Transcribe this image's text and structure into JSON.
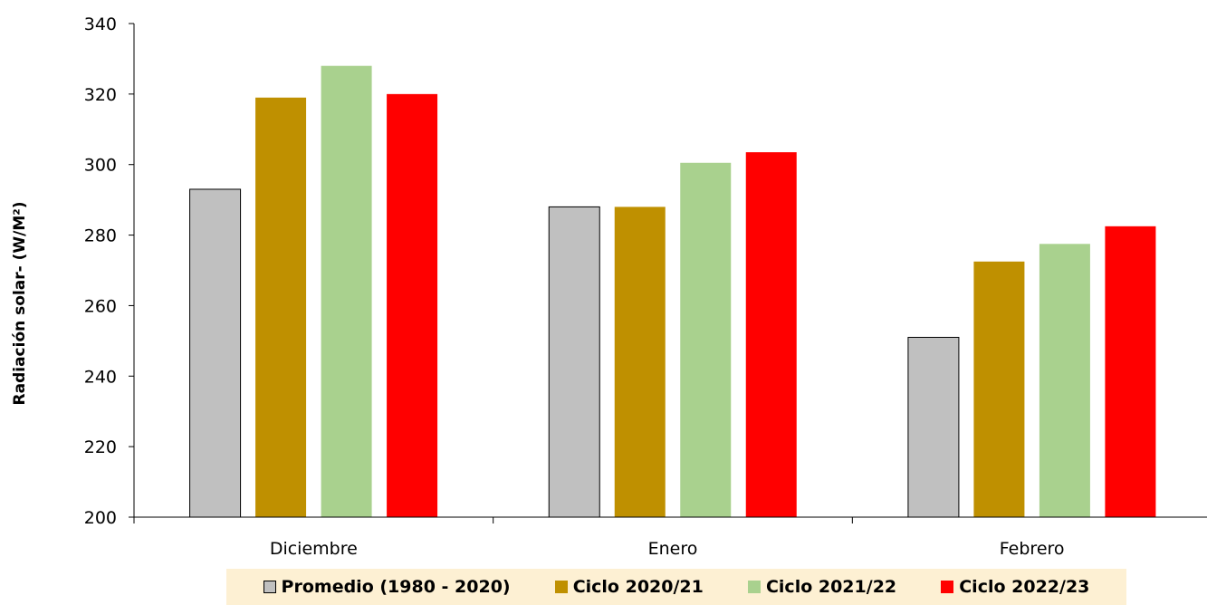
{
  "chart_data": {
    "type": "bar",
    "title": "",
    "xlabel": "",
    "ylabel": "Radiación solar- (W/M²)",
    "ylim": [
      200,
      340
    ],
    "yticks": [
      200,
      220,
      240,
      260,
      280,
      300,
      320,
      340
    ],
    "categories": [
      "Diciembre",
      "Enero",
      "Febrero"
    ],
    "grid": false,
    "legend_position": "bottom",
    "series": [
      {
        "name": "Promedio (1980 - 2020)",
        "color": "#c0c0c0",
        "values": [
          293,
          288,
          251
        ]
      },
      {
        "name": "Ciclo 2020/21",
        "color": "#bf9000",
        "values": [
          319,
          288,
          272.5
        ]
      },
      {
        "name": "Ciclo 2021/22",
        "color": "#a9d18e",
        "values": [
          328,
          300.5,
          277.5
        ]
      },
      {
        "name": "Ciclo 2022/23",
        "color": "#ff0000",
        "values": [
          320,
          303.5,
          282.5
        ]
      }
    ]
  }
}
